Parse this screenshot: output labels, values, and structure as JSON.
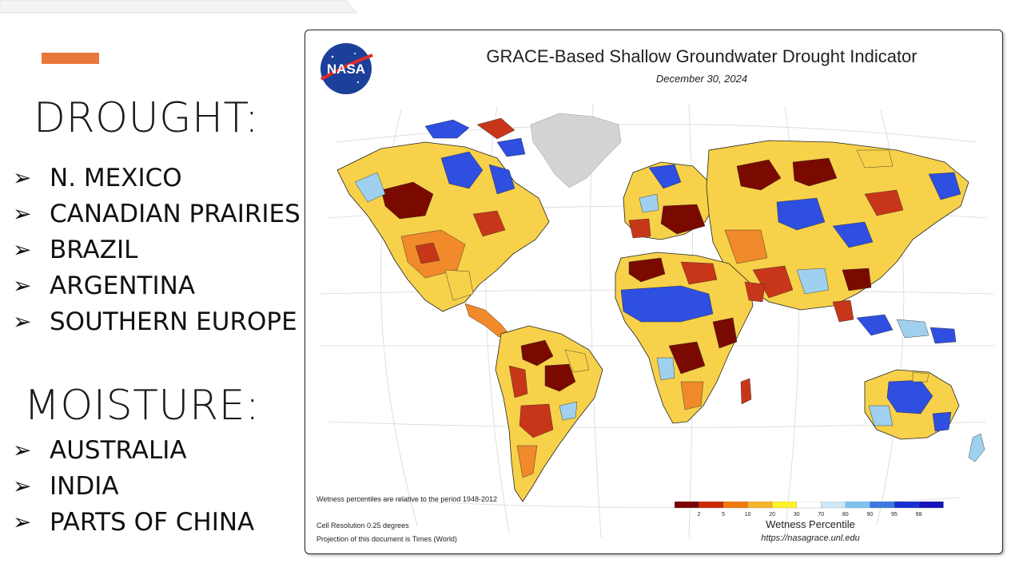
{
  "slide": {
    "accent_color": "#e8773a",
    "drought": {
      "heading": "DROUGHT:",
      "items": [
        "N. MEXICO",
        "CANADIAN PRAIRIES",
        "BRAZIL",
        "ARGENTINA",
        "SOUTHERN EUROPE"
      ]
    },
    "moisture": {
      "heading": "MOISTURE:",
      "items": [
        "AUSTRALIA",
        "INDIA",
        "PARTS OF CHINA"
      ]
    },
    "bullet_glyph": "➢"
  },
  "map": {
    "logo_text": "NASA",
    "title": "GRACE-Based Shallow Groundwater Drought Indicator",
    "date": "December 30, 2024",
    "note_period": "Wetness percentiles are relative to the period 1948-2012",
    "note_resolution": "Cell Resolution 0.25 degrees",
    "note_projection": "Projection of this document is Times (World)",
    "legend": {
      "title": "Wetness Percentile",
      "url": "https://nasagrace.unl.edu",
      "ticks": [
        "2",
        "5",
        "10",
        "20",
        "30",
        "70",
        "80",
        "90",
        "95",
        "98"
      ],
      "colors": [
        "#7a0000",
        "#cc2a00",
        "#f07a10",
        "#f7b52c",
        "#fff22a",
        "#ffffff",
        "#cde8f7",
        "#7ec3ef",
        "#3d7ae0",
        "#1b2fd6",
        "#1414b8"
      ]
    },
    "palette": {
      "dry_extreme": "#7a0a00",
      "dry_severe": "#c8361a",
      "dry_moderate": "#f08a2a",
      "dry_mild": "#f7d14a",
      "normal": "#fbfbfb",
      "wet_mild": "#9fd0f0",
      "wet_strong": "#2e4fe0",
      "greenland": "#d3d3d3"
    }
  }
}
